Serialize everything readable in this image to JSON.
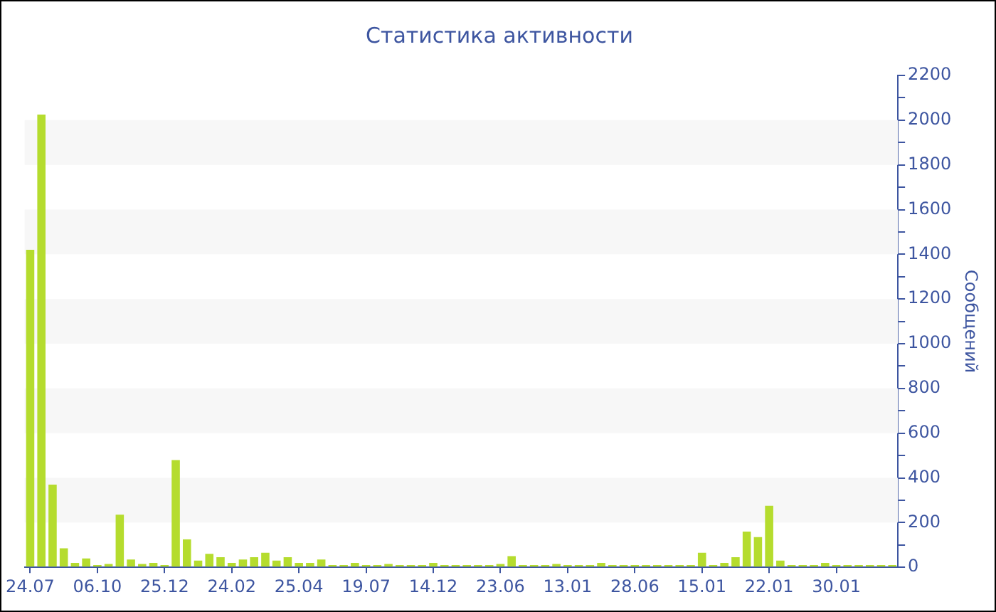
{
  "chart_data": {
    "type": "bar",
    "title": "Статистика активности",
    "ylabel": "Сообщений",
    "categories": [
      "24.07",
      null,
      null,
      null,
      null,
      null,
      "06.10",
      null,
      null,
      null,
      null,
      null,
      "25.12",
      null,
      null,
      null,
      null,
      null,
      "24.02",
      null,
      null,
      null,
      null,
      null,
      "25.04",
      null,
      null,
      null,
      null,
      null,
      "19.07",
      null,
      null,
      null,
      null,
      null,
      "14.12",
      null,
      null,
      null,
      null,
      null,
      "23.06",
      null,
      null,
      null,
      null,
      null,
      "13.01",
      null,
      null,
      null,
      null,
      null,
      "28.06",
      null,
      null,
      null,
      null,
      null,
      "15.01",
      null,
      null,
      null,
      null,
      null,
      "22.01",
      null,
      null,
      null,
      null,
      null,
      "30.01",
      null,
      null,
      null,
      null,
      null
    ],
    "values": [
      1420,
      2025,
      370,
      85,
      20,
      40,
      10,
      15,
      235,
      35,
      15,
      20,
      10,
      480,
      125,
      30,
      60,
      45,
      20,
      35,
      45,
      65,
      30,
      45,
      20,
      20,
      35,
      10,
      10,
      20,
      10,
      10,
      15,
      10,
      10,
      10,
      20,
      10,
      10,
      10,
      10,
      10,
      15,
      50,
      10,
      10,
      10,
      15,
      10,
      10,
      10,
      20,
      10,
      10,
      10,
      10,
      10,
      10,
      10,
      10,
      65,
      10,
      20,
      45,
      160,
      135,
      275,
      30,
      10,
      10,
      10,
      20,
      10,
      10,
      10,
      10,
      10,
      10
    ],
    "color": "#b5dc2e",
    "ylim": [
      0,
      2200
    ],
    "yticks": [
      0,
      {
        "value": 100,
        "label": null
      },
      200,
      {
        "value": 300,
        "label": null
      },
      400,
      {
        "value": 500,
        "label": null
      },
      600,
      {
        "value": 700,
        "label": null
      },
      800,
      {
        "value": 900,
        "label": null
      },
      1000,
      {
        "value": 1100,
        "label": null
      },
      1200,
      {
        "value": 1300,
        "label": null
      },
      1400,
      {
        "value": 1500,
        "label": null
      },
      1600,
      {
        "value": 1700,
        "label": null
      },
      1800,
      {
        "value": 1900,
        "label": null
      },
      2000,
      {
        "value": 2100,
        "label": null
      },
      2200
    ],
    "bands": [
      {
        "axis": "y",
        "from": 200,
        "to": 400,
        "color": "#f7f7f7"
      },
      {
        "axis": "y",
        "from": 600,
        "to": 800,
        "color": "#f7f7f7"
      },
      {
        "axis": "y",
        "from": 1000,
        "to": 1200,
        "color": "#f7f7f7"
      },
      {
        "axis": "y",
        "from": 1400,
        "to": 1600,
        "color": "#f7f7f7"
      },
      {
        "axis": "y",
        "from": 1800,
        "to": 2000,
        "color": "#f7f7f7"
      }
    ],
    "legend": false
  }
}
